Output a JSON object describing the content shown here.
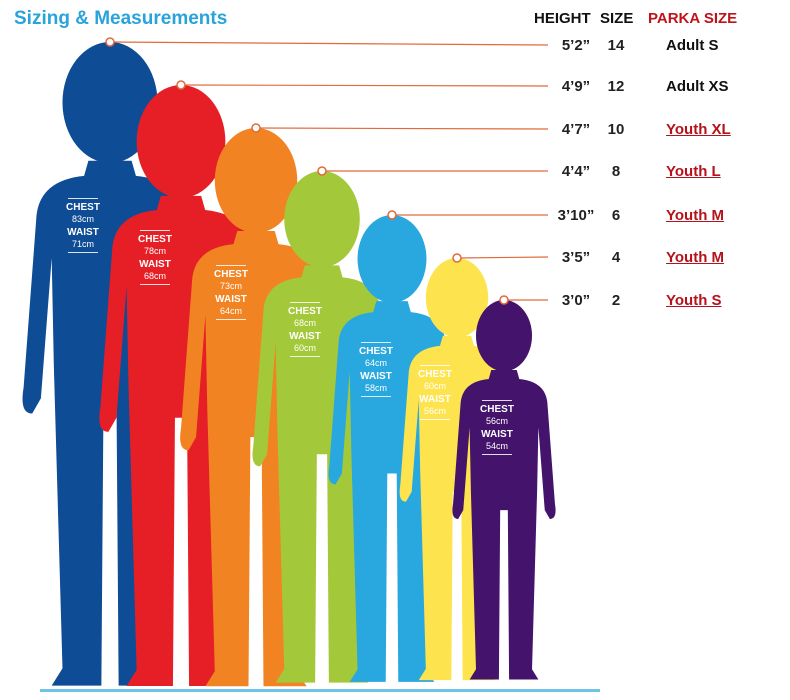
{
  "title": "Sizing & Measurements",
  "table": {
    "headers": {
      "height": "HEIGHT",
      "size": "SIZE",
      "parka": "PARKA SIZE"
    },
    "header_colors": {
      "parka": "#c0121b"
    },
    "rows": [
      {
        "height": "5’2”",
        "size": "14",
        "parka": "Adult S",
        "youth": false
      },
      {
        "height": "4’9”",
        "size": "12",
        "parka": "Adult XS",
        "youth": false
      },
      {
        "height": "4’7”",
        "size": "10",
        "parka": "Youth XL",
        "youth": true
      },
      {
        "height": "4’4”",
        "size": "8",
        "parka": "Youth L",
        "youth": true
      },
      {
        "height": "3’10”",
        "size": "6",
        "parka": "Youth M",
        "youth": true
      },
      {
        "height": "3’5”",
        "size": "4",
        "parka": "Youth M",
        "youth": true
      },
      {
        "height": "3’0”",
        "size": "2",
        "parka": "Youth S",
        "youth": true
      }
    ]
  },
  "figures": [
    {
      "color": "#0e4c95",
      "chest_label": "CHEST",
      "chest": "83cm",
      "waist_label": "WAIST",
      "waist": "71cm"
    },
    {
      "color": "#e61f26",
      "chest_label": "CHEST",
      "chest": "78cm",
      "waist_label": "WAIST",
      "waist": "68cm"
    },
    {
      "color": "#f28322",
      "chest_label": "CHEST",
      "chest": "73cm",
      "waist_label": "WAIST",
      "waist": "64cm"
    },
    {
      "color": "#a3c93a",
      "chest_label": "CHEST",
      "chest": "68cm",
      "waist_label": "WAIST",
      "waist": "60cm"
    },
    {
      "color": "#29a8e0",
      "chest_label": "CHEST",
      "chest": "64cm",
      "waist_label": "WAIST",
      "waist": "58cm"
    },
    {
      "color": "#fde44f",
      "chest_label": "CHEST",
      "chest": "60cm",
      "waist_label": "WAIST",
      "waist": "56cm"
    },
    {
      "color": "#44136b",
      "chest_label": "CHEST",
      "chest": "56cm",
      "waist_label": "WAIST",
      "waist": "54cm"
    }
  ],
  "pointer_color": "#e06a3c",
  "ground_color": "#6fc3e8"
}
